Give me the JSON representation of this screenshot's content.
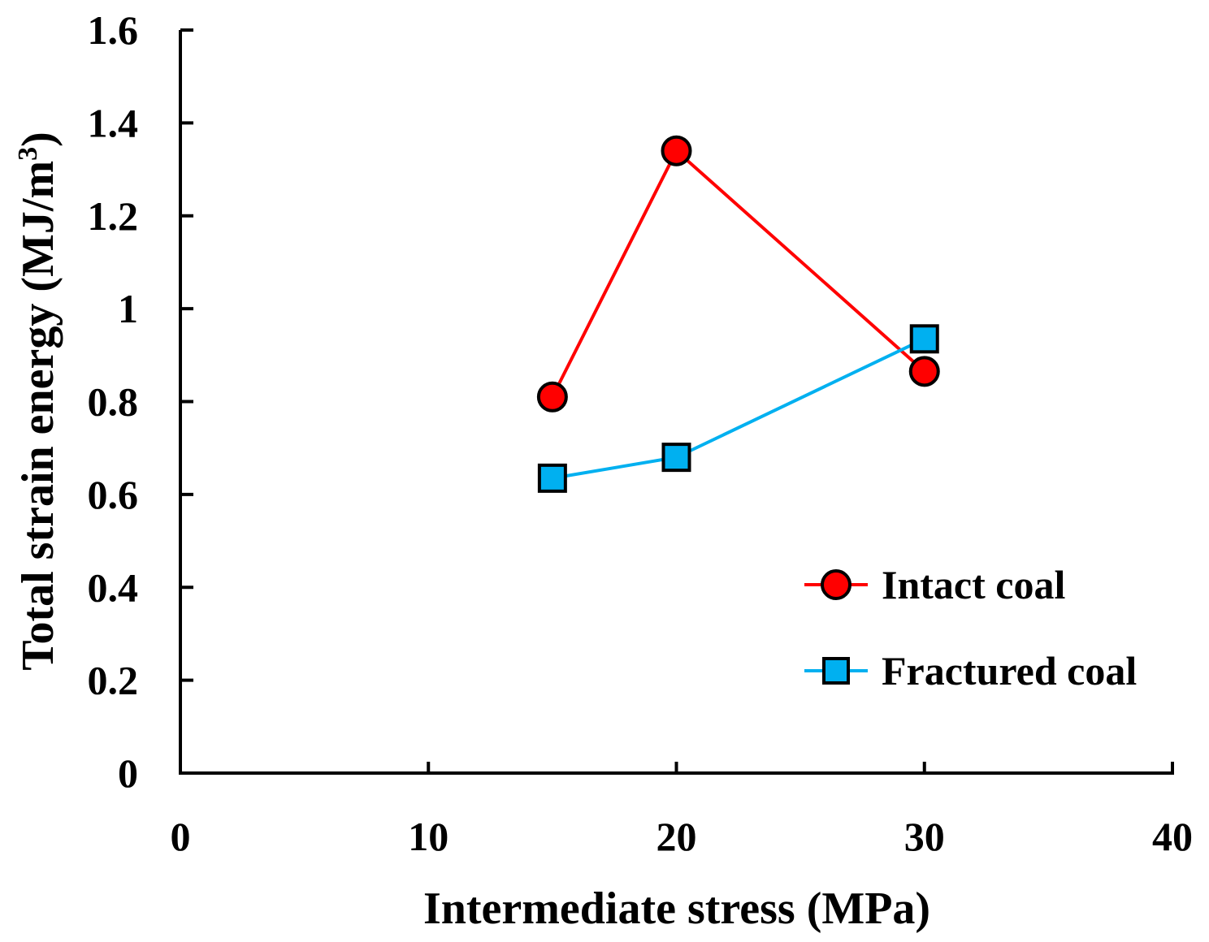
{
  "chart_data": {
    "type": "line",
    "title": "",
    "xlabel": "Intermediate stress (MPa)",
    "ylabel_main": "Total strain energy (MJ/m",
    "ylabel_sup": "3",
    "ylabel_close": ")",
    "xlim": [
      0,
      40
    ],
    "ylim": [
      0,
      1.6
    ],
    "x_ticks": [
      0,
      10,
      20,
      30,
      40
    ],
    "x_tick_labels": [
      "0",
      "10",
      "20",
      "30",
      "40"
    ],
    "y_ticks": [
      0,
      0.2,
      0.4,
      0.6,
      0.8,
      1.0,
      1.2,
      1.4,
      1.6
    ],
    "y_tick_labels": [
      "0",
      "0.2",
      "0.4",
      "0.6",
      "0.8",
      "1",
      "1.2",
      "1.4",
      "1.6"
    ],
    "grid": false,
    "legend_position": "bottom-right",
    "series": [
      {
        "name": "Intact coal",
        "marker": "circle",
        "color": "#ff0000",
        "x": [
          15,
          20,
          30
        ],
        "y": [
          0.81,
          1.34,
          0.865
        ]
      },
      {
        "name": "Fractured coal",
        "marker": "square",
        "color": "#00b0f0",
        "x": [
          15,
          20,
          30
        ],
        "y": [
          0.635,
          0.68,
          0.935
        ]
      }
    ]
  }
}
